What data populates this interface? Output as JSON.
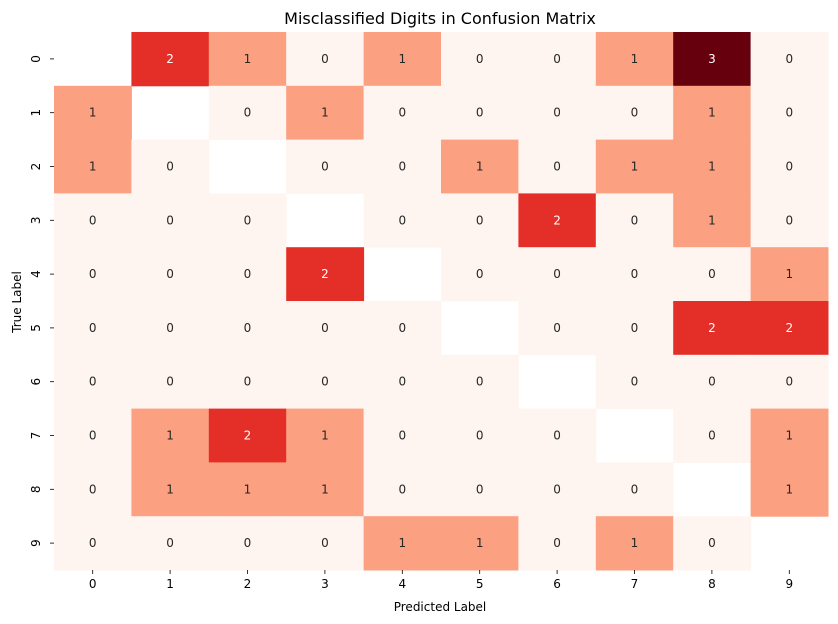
{
  "chart_data": {
    "type": "heatmap",
    "title": "Misclassified Digits in Confusion Matrix",
    "xlabel": "Predicted Label",
    "ylabel": "True Label",
    "x_categories": [
      "0",
      "1",
      "2",
      "3",
      "4",
      "5",
      "6",
      "7",
      "8",
      "9"
    ],
    "y_categories": [
      "0",
      "1",
      "2",
      "3",
      "4",
      "5",
      "6",
      "7",
      "8",
      "9"
    ],
    "values": [
      [
        null,
        2,
        1,
        0,
        1,
        0,
        0,
        1,
        3,
        0
      ],
      [
        1,
        null,
        0,
        1,
        0,
        0,
        0,
        0,
        1,
        0
      ],
      [
        1,
        0,
        null,
        0,
        0,
        1,
        0,
        1,
        1,
        0
      ],
      [
        0,
        0,
        0,
        null,
        0,
        0,
        2,
        0,
        1,
        0
      ],
      [
        0,
        0,
        0,
        2,
        null,
        0,
        0,
        0,
        0,
        1
      ],
      [
        0,
        0,
        0,
        0,
        0,
        null,
        0,
        0,
        2,
        2
      ],
      [
        0,
        0,
        0,
        0,
        0,
        0,
        null,
        0,
        0,
        0
      ],
      [
        0,
        1,
        2,
        1,
        0,
        0,
        0,
        null,
        0,
        1
      ],
      [
        0,
        1,
        1,
        1,
        0,
        0,
        0,
        0,
        null,
        1
      ],
      [
        0,
        0,
        0,
        0,
        1,
        1,
        0,
        1,
        0,
        null
      ]
    ],
    "colormap": "Reds",
    "color_scale": {
      "0": "#fff5f0",
      "1": "#fca082",
      "2": "#e32f27",
      "3": "#67000d"
    },
    "diagonal_masked": true,
    "colorbar": false,
    "grid": false
  }
}
